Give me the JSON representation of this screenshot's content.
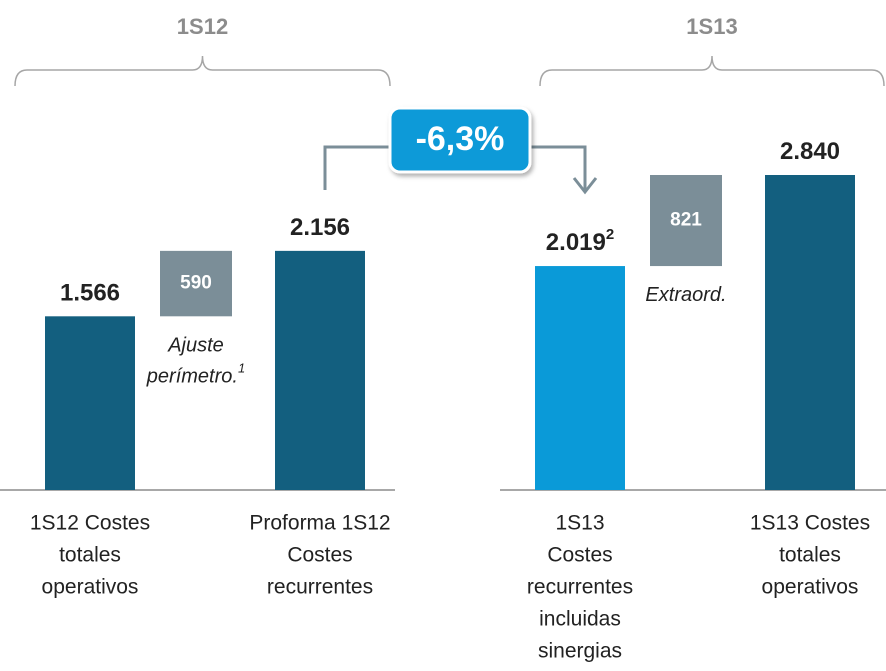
{
  "chart_data": {
    "type": "waterfall",
    "change": "-6,3%",
    "groups": [
      {
        "label": "1S12",
        "categories": [
          [
            "1S12 Costes",
            "totales",
            "operativos"
          ],
          null,
          [
            "Proforma 1S12",
            "Costes",
            "recurrentes"
          ]
        ],
        "values": [
          1566,
          590,
          2156
        ],
        "value_labels": [
          "1.566",
          "590",
          "2.156"
        ],
        "measure": [
          "total",
          "relative",
          "total"
        ],
        "colors": [
          "#135f7f",
          "#7b8e98",
          "#135f7f"
        ],
        "note": [
          "Ajuste",
          "perímetro."
        ],
        "note_footnote": "1"
      },
      {
        "label": "1S13",
        "categories": [
          [
            "1S13",
            "Costes",
            "recurrentes",
            "incluidas",
            "sinergias"
          ],
          null,
          [
            "1S13 Costes",
            "totales",
            "operativos"
          ]
        ],
        "values": [
          2019,
          821,
          2840
        ],
        "value_labels": [
          "2.019",
          "821",
          "2.840"
        ],
        "value_footnote": "2",
        "measure": [
          "total",
          "relative",
          "total"
        ],
        "colors": [
          "#0a9ad8",
          "#7b8e98",
          "#135f7f"
        ],
        "note": [
          "Extraord."
        ]
      }
    ]
  }
}
